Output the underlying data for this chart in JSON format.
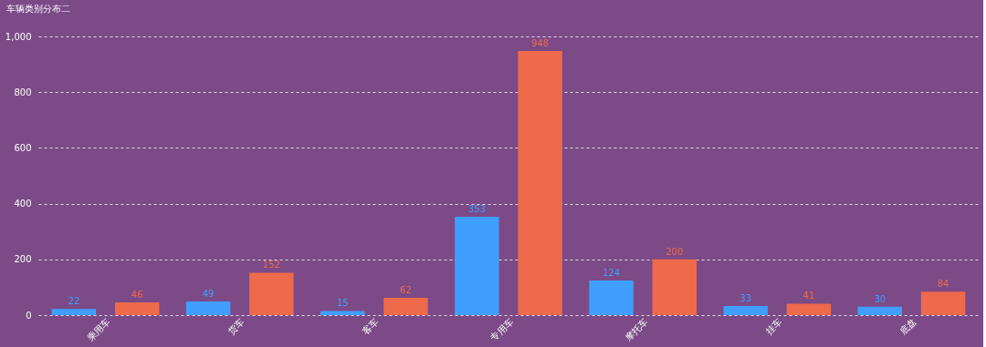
{
  "chart_data": {
    "type": "bar",
    "title": "车辆类别分布二",
    "categories": [
      "乘用车",
      "货车",
      "客车",
      "专用车",
      "摩托车",
      "挂车",
      "底盘"
    ],
    "series": [
      {
        "color": "#409eff",
        "values": [
          22,
          49,
          15,
          353,
          124,
          33,
          30
        ]
      },
      {
        "color": "#ee6a4b",
        "values": [
          46,
          152,
          62,
          948,
          200,
          41,
          84
        ]
      }
    ],
    "ylim": [
      0,
      1000
    ],
    "yticks": [
      0,
      200,
      400,
      600,
      800,
      {
        "value": 1000,
        "label": "1,000"
      }
    ],
    "grid": "y",
    "data_labels": true,
    "legend": false
  }
}
